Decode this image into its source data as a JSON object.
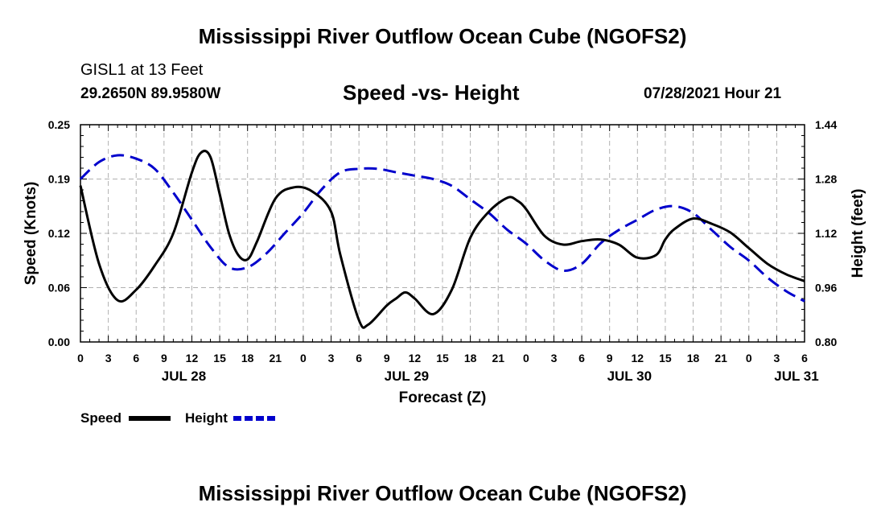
{
  "header": {
    "title": "Mississippi River Outflow Ocean Cube (NGOFS2)",
    "station": "GISL1 at 13 Feet",
    "coords": "29.2650N  89.9580W",
    "subtitle": "Speed -vs- Height",
    "datetime": "07/28/2021 Hour 21"
  },
  "footer": {
    "title": "Mississippi River Outflow Ocean Cube (NGOFS2)"
  },
  "legend": {
    "speed_label": "Speed",
    "height_label": "Height"
  },
  "colors": {
    "speed": "#000000",
    "height": "#0000cc",
    "grid": "#b0b0b0"
  },
  "chart_data": {
    "type": "line",
    "title": "Speed -vs- Height",
    "xlabel": "Forecast (Z)",
    "ylabel": "Speed (Knots)",
    "y2label": "Height (feet)",
    "xlim": [
      0,
      78
    ],
    "ylim": [
      0.0,
      0.25
    ],
    "y2lim": [
      0.8,
      1.44
    ],
    "yticks": [
      "0.00",
      "0.06",
      "0.12",
      "0.19",
      "0.25"
    ],
    "yticks_values": [
      0.0,
      0.0625,
      0.125,
      0.1875,
      0.25
    ],
    "y2ticks": [
      "0.80",
      "0.96",
      "1.12",
      "1.28",
      "1.44"
    ],
    "y2ticks_values": [
      0.8,
      0.96,
      1.12,
      1.28,
      1.44
    ],
    "xticks": [
      "0",
      "3",
      "6",
      "9",
      "12",
      "15",
      "18",
      "21",
      "0",
      "3",
      "6",
      "9",
      "12",
      "15",
      "18",
      "21",
      "0",
      "3",
      "6",
      "9",
      "12",
      "15",
      "18",
      "21",
      "0",
      "3",
      "6"
    ],
    "date_labels": [
      {
        "label": "JUL 28",
        "hour": 12
      },
      {
        "label": "JUL 29",
        "hour": 36
      },
      {
        "label": "JUL 30",
        "hour": 60
      },
      {
        "label": "JUL 31",
        "hour": 78
      }
    ],
    "series": [
      {
        "name": "Speed",
        "axis": "left",
        "x": [
          0,
          2,
          4,
          6,
          8,
          10,
          12,
          13,
          14,
          15,
          16,
          17,
          18,
          19,
          21,
          23,
          25,
          27,
          28,
          30,
          31,
          33,
          34,
          35,
          36,
          38,
          40,
          42,
          44,
          46,
          47,
          48,
          50,
          52,
          54,
          56,
          58,
          60,
          62,
          63,
          64,
          66,
          68,
          70,
          72,
          74,
          76,
          78
        ],
        "values": [
          0.18,
          0.09,
          0.048,
          0.06,
          0.088,
          0.125,
          0.195,
          0.218,
          0.213,
          0.17,
          0.125,
          0.1,
          0.095,
          0.115,
          0.165,
          0.178,
          0.173,
          0.15,
          0.1,
          0.025,
          0.02,
          0.042,
          0.05,
          0.057,
          0.05,
          0.032,
          0.06,
          0.12,
          0.15,
          0.166,
          0.163,
          0.153,
          0.122,
          0.112,
          0.116,
          0.118,
          0.112,
          0.097,
          0.1,
          0.118,
          0.13,
          0.142,
          0.136,
          0.126,
          0.108,
          0.09,
          0.078,
          0.07
        ]
      },
      {
        "name": "Height",
        "axis": "right",
        "x": [
          0,
          2,
          4,
          6,
          8,
          10,
          12,
          14,
          16,
          18,
          20,
          22,
          24,
          26,
          28,
          30,
          32,
          34,
          36,
          38,
          40,
          42,
          44,
          46,
          48,
          50,
          52,
          54,
          56,
          58,
          60,
          62,
          64,
          66,
          68,
          70,
          72,
          74,
          76,
          78
        ],
        "values": [
          1.28,
          1.33,
          1.35,
          1.34,
          1.31,
          1.24,
          1.16,
          1.08,
          1.02,
          1.02,
          1.06,
          1.12,
          1.18,
          1.25,
          1.3,
          1.31,
          1.31,
          1.3,
          1.29,
          1.28,
          1.26,
          1.22,
          1.18,
          1.13,
          1.09,
          1.04,
          1.01,
          1.03,
          1.09,
          1.13,
          1.16,
          1.19,
          1.2,
          1.18,
          1.13,
          1.08,
          1.04,
          0.99,
          0.95,
          0.92
        ]
      }
    ]
  }
}
